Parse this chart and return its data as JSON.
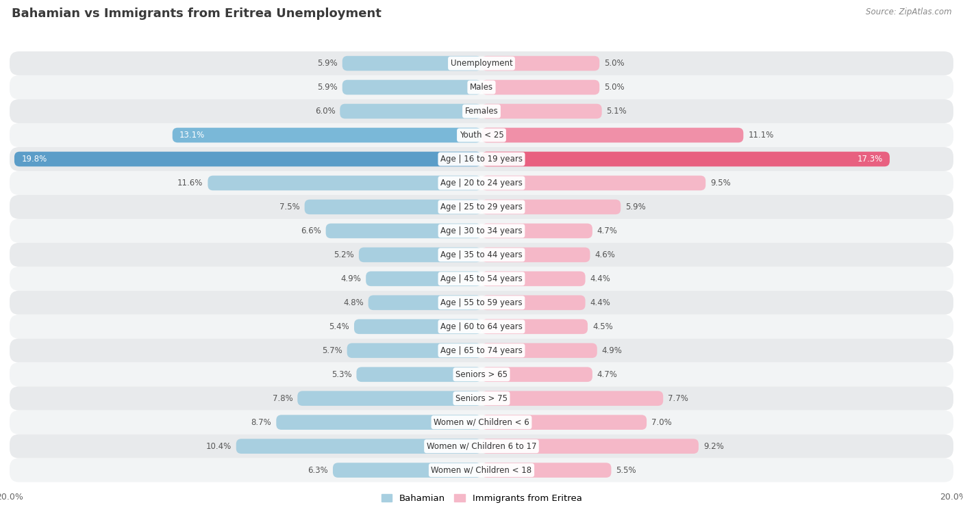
{
  "title": "Bahamian vs Immigrants from Eritrea Unemployment",
  "source": "Source: ZipAtlas.com",
  "categories": [
    "Unemployment",
    "Males",
    "Females",
    "Youth < 25",
    "Age | 16 to 19 years",
    "Age | 20 to 24 years",
    "Age | 25 to 29 years",
    "Age | 30 to 34 years",
    "Age | 35 to 44 years",
    "Age | 45 to 54 years",
    "Age | 55 to 59 years",
    "Age | 60 to 64 years",
    "Age | 65 to 74 years",
    "Seniors > 65",
    "Seniors > 75",
    "Women w/ Children < 6",
    "Women w/ Children 6 to 17",
    "Women w/ Children < 18"
  ],
  "bahamian": [
    5.9,
    5.9,
    6.0,
    13.1,
    19.8,
    11.6,
    7.5,
    6.6,
    5.2,
    4.9,
    4.8,
    5.4,
    5.7,
    5.3,
    7.8,
    8.7,
    10.4,
    6.3
  ],
  "eritrea": [
    5.0,
    5.0,
    5.1,
    11.1,
    17.3,
    9.5,
    5.9,
    4.7,
    4.6,
    4.4,
    4.4,
    4.5,
    4.9,
    4.7,
    7.7,
    7.0,
    9.2,
    5.5
  ],
  "bahamian_color_normal": "#a8cfe0",
  "bahamian_color_medium": "#7ab8d8",
  "bahamian_color_strong": "#5b9dc8",
  "eritrea_color_normal": "#f5b8c8",
  "eritrea_color_medium": "#f090a8",
  "eritrea_color_strong": "#e86080",
  "row_color_odd": "#e8eaec",
  "row_color_even": "#f2f4f5",
  "background_color": "#ffffff",
  "axis_limit": 20.0,
  "legend_label_bahamian": "Bahamian",
  "legend_label_eritrea": "Immigrants from Eritrea",
  "title_color": "#3a3a3a",
  "label_color_dark": "#555555",
  "label_color_light": "#ffffff"
}
